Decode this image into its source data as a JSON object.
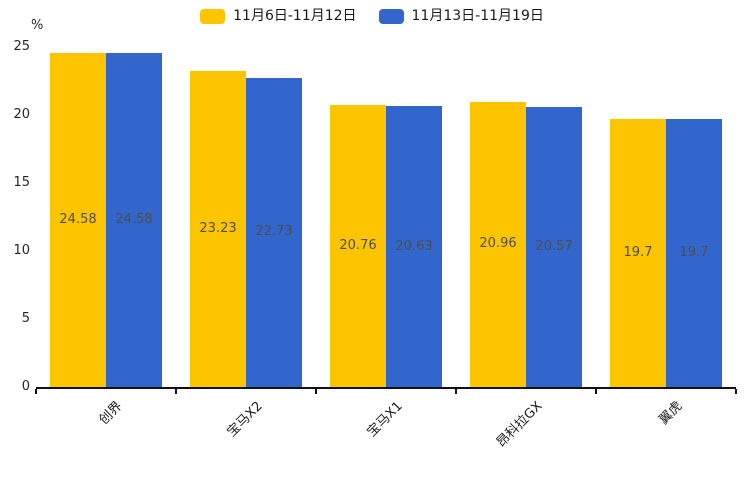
{
  "chart_data": {
    "type": "bar",
    "title": "",
    "xlabel": "",
    "ylabel": "%",
    "ylim": [
      0,
      25
    ],
    "yticks": [
      0,
      5,
      10,
      15,
      20,
      25
    ],
    "grid": false,
    "legend_position": "top-center",
    "value_labels": "inside-middle",
    "categories": [
      "创界",
      "宝马X2",
      "宝马X1",
      "昂科拉GX",
      "翼虎"
    ],
    "series": [
      {
        "name": "11月6日-11月12日",
        "color": "#FDC500",
        "values": [
          24.58,
          23.23,
          20.76,
          20.96,
          19.7
        ]
      },
      {
        "name": "11月13日-11月19日",
        "color": "#3366CC",
        "values": [
          24.58,
          22.73,
          20.63,
          20.57,
          19.7
        ]
      }
    ]
  },
  "colors": {
    "background": "#ffffff",
    "axis": "#111111",
    "tick_label": "#262626",
    "value_label": "#4d4d4d",
    "legend_text": "#1a1a1a"
  }
}
